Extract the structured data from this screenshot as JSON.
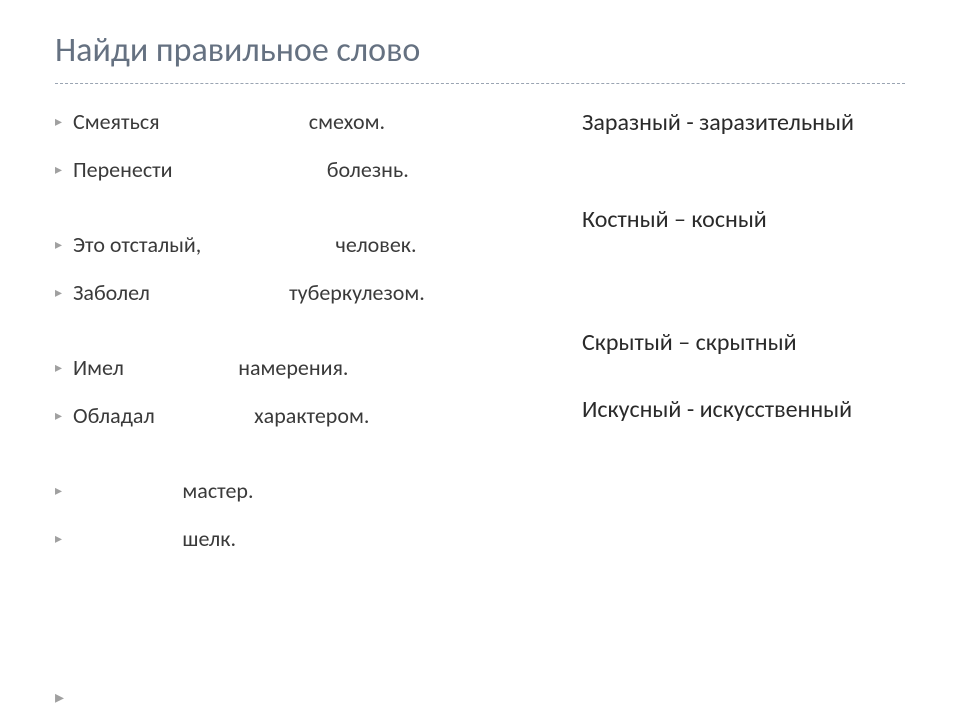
{
  "title": "Найди правильное слово",
  "bullet_char": "▸",
  "left_groups": [
    [
      "Смеяться                              смехом.",
      "Перенести                               болезнь."
    ],
    [
      "Это отсталый,                           человек.",
      "Заболел                            туберкулезом."
    ],
    [
      "Имел                       намерения.",
      "Обладал                    характером."
    ],
    [
      "                       мастер.",
      "                       шелк."
    ]
  ],
  "right_pairs": [
    "Заразный  - заразительный",
    "Костный – косный",
    "Скрытый – скрытный",
    "Искусный - искусственный"
  ],
  "colors": {
    "title": "#657181",
    "divider": "#9aa4b2",
    "body_text": "#3a3a3a",
    "pair_text": "#2a2a2a",
    "bullet": "#a0a0a0",
    "background": "#ffffff"
  },
  "typography": {
    "title_fontsize": 34,
    "bullet_fontsize": 22,
    "pair_fontsize": 24
  },
  "corner_marker": "▸"
}
